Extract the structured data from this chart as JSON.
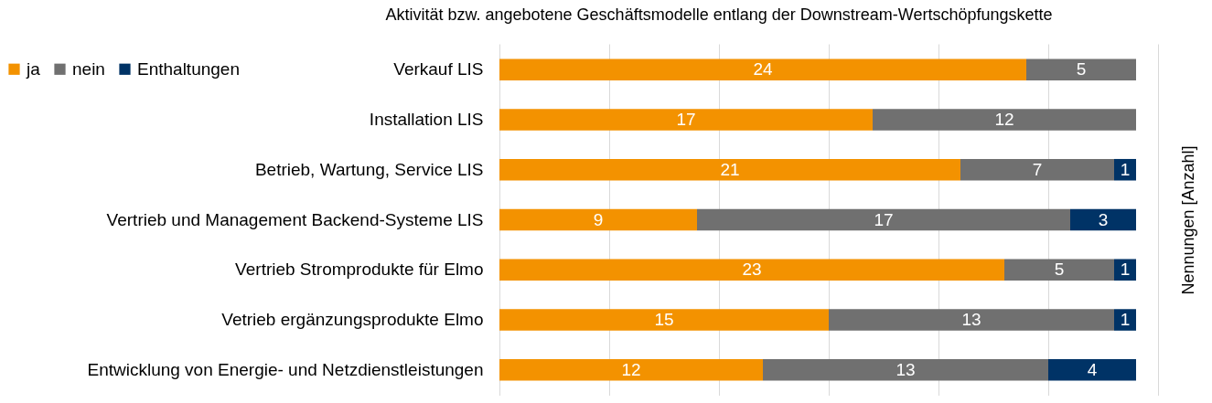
{
  "chart_data": {
    "type": "bar",
    "orientation": "horizontal",
    "stacked": true,
    "title": "Aktivität bzw. angebotene Geschäftsmodelle entlang der Downstream-Wertschöpfungskette",
    "ylabel": "Nennungen [Anzahl]",
    "categories": [
      "Verkauf LIS",
      "Installation LIS",
      "Betrieb, Wartung, Service LIS",
      "Vertrieb und Management  Backend-Systeme LIS",
      "Vertrieb Stromprodukte für Elmo",
      "Vetrieb ergänzungsprodukte Elmo",
      "Entwicklung von Energie- und Netzdienstleistungen"
    ],
    "series": [
      {
        "name": "ja",
        "color": "#f39200",
        "values": [
          24,
          17,
          21,
          9,
          23,
          15,
          12
        ]
      },
      {
        "name": "nein",
        "color": "#707070",
        "values": [
          5,
          12,
          7,
          17,
          5,
          13,
          13
        ]
      },
      {
        "name": "Enthaltungen",
        "color": "#003366",
        "values": [
          null,
          null,
          1,
          3,
          1,
          1,
          4
        ]
      }
    ],
    "xlim": [
      0,
      30
    ],
    "xticks": [
      {
        "value": 0,
        "label": null
      },
      {
        "value": 5,
        "label": null
      },
      {
        "value": 10,
        "label": null
      },
      {
        "value": 15,
        "label": null
      },
      {
        "value": 20,
        "label": null
      },
      {
        "value": 25,
        "label": null
      },
      {
        "value": 30,
        "label": null
      }
    ],
    "grid": "x",
    "legend": "top left",
    "tick_labels": "y",
    "data_labels": true
  }
}
